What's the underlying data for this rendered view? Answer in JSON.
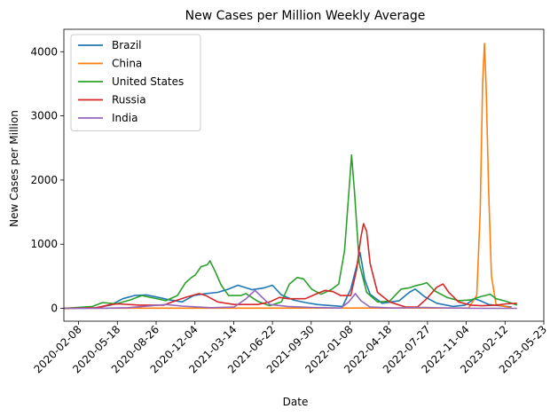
{
  "chart_data": {
    "type": "line",
    "title": "New Cases per Million Weekly Average",
    "xlabel": "Date",
    "ylabel": "New Cases per Million",
    "x_axis_type": "date",
    "xlim": [
      "2020-01-01",
      "2023-05-23"
    ],
    "ylim": [
      -200,
      4350
    ],
    "x_ticks": [
      "2020-02-08",
      "2020-05-18",
      "2020-08-26",
      "2020-12-04",
      "2021-03-14",
      "2021-06-22",
      "2021-09-30",
      "2022-01-08",
      "2022-04-18",
      "2022-07-27",
      "2022-11-04",
      "2023-02-12",
      "2023-05-23"
    ],
    "y_ticks": [
      0,
      1000,
      2000,
      3000,
      4000
    ],
    "grid": false,
    "legend_position": "upper-left",
    "series": [
      {
        "name": "Brazil",
        "color": "#1f77b4",
        "points": [
          [
            "2020-01-01",
            0
          ],
          [
            "2020-03-20",
            5
          ],
          [
            "2020-05-01",
            50
          ],
          [
            "2020-06-01",
            150
          ],
          [
            "2020-07-01",
            200
          ],
          [
            "2020-08-01",
            210
          ],
          [
            "2020-09-01",
            170
          ],
          [
            "2020-10-01",
            130
          ],
          [
            "2020-11-01",
            100
          ],
          [
            "2020-12-01",
            200
          ],
          [
            "2021-01-01",
            230
          ],
          [
            "2021-02-01",
            250
          ],
          [
            "2021-03-01",
            300
          ],
          [
            "2021-03-25",
            360
          ],
          [
            "2021-04-15",
            320
          ],
          [
            "2021-05-01",
            290
          ],
          [
            "2021-06-01",
            320
          ],
          [
            "2021-06-22",
            360
          ],
          [
            "2021-07-15",
            210
          ],
          [
            "2021-08-15",
            130
          ],
          [
            "2021-09-15",
            90
          ],
          [
            "2021-10-15",
            60
          ],
          [
            "2021-11-15",
            45
          ],
          [
            "2021-12-20",
            30
          ],
          [
            "2022-01-10",
            300
          ],
          [
            "2022-01-25",
            650
          ],
          [
            "2022-02-03",
            870
          ],
          [
            "2022-02-15",
            450
          ],
          [
            "2022-03-01",
            220
          ],
          [
            "2022-04-01",
            80
          ],
          [
            "2022-05-15",
            120
          ],
          [
            "2022-06-10",
            250
          ],
          [
            "2022-06-25",
            300
          ],
          [
            "2022-07-20",
            180
          ],
          [
            "2022-08-20",
            80
          ],
          [
            "2022-10-01",
            30
          ],
          [
            "2022-11-01",
            50
          ],
          [
            "2022-11-25",
            150
          ],
          [
            "2022-12-10",
            120
          ],
          [
            "2023-01-01",
            60
          ],
          [
            "2023-03-01",
            20
          ]
        ]
      },
      {
        "name": "China",
        "color": "#ff7f0e",
        "points": [
          [
            "2020-01-01",
            0
          ],
          [
            "2020-02-15",
            3
          ],
          [
            "2022-11-10",
            5
          ],
          [
            "2022-12-01",
            200
          ],
          [
            "2022-12-10",
            1500
          ],
          [
            "2022-12-16",
            3500
          ],
          [
            "2022-12-21",
            4130
          ],
          [
            "2022-12-25",
            3500
          ],
          [
            "2023-01-01",
            1800
          ],
          [
            "2023-01-08",
            500
          ],
          [
            "2023-01-20",
            60
          ],
          [
            "2023-03-01",
            5
          ]
        ]
      },
      {
        "name": "United States",
        "color": "#2ca02c",
        "points": [
          [
            "2020-01-01",
            0
          ],
          [
            "2020-03-15",
            30
          ],
          [
            "2020-04-10",
            90
          ],
          [
            "2020-05-15",
            70
          ],
          [
            "2020-06-20",
            130
          ],
          [
            "2020-07-20",
            200
          ],
          [
            "2020-08-20",
            160
          ],
          [
            "2020-09-20",
            120
          ],
          [
            "2020-10-20",
            200
          ],
          [
            "2020-11-10",
            400
          ],
          [
            "2020-11-25",
            480
          ],
          [
            "2020-12-05",
            520
          ],
          [
            "2020-12-20",
            650
          ],
          [
            "2021-01-05",
            680
          ],
          [
            "2021-01-12",
            740
          ],
          [
            "2021-01-25",
            580
          ],
          [
            "2021-02-10",
            360
          ],
          [
            "2021-03-01",
            200
          ],
          [
            "2021-04-01",
            200
          ],
          [
            "2021-04-15",
            230
          ],
          [
            "2021-05-15",
            110
          ],
          [
            "2021-06-15",
            40
          ],
          [
            "2021-07-15",
            100
          ],
          [
            "2021-08-05",
            380
          ],
          [
            "2021-08-25",
            480
          ],
          [
            "2021-09-10",
            460
          ],
          [
            "2021-10-01",
            300
          ],
          [
            "2021-10-25",
            220
          ],
          [
            "2021-11-20",
            290
          ],
          [
            "2021-12-10",
            380
          ],
          [
            "2021-12-25",
            900
          ],
          [
            "2022-01-05",
            1800
          ],
          [
            "2022-01-12",
            2390
          ],
          [
            "2022-01-20",
            1800
          ],
          [
            "2022-02-01",
            700
          ],
          [
            "2022-02-20",
            250
          ],
          [
            "2022-03-20",
            100
          ],
          [
            "2022-04-20",
            110
          ],
          [
            "2022-05-20",
            300
          ],
          [
            "2022-06-10",
            320
          ],
          [
            "2022-06-25",
            350
          ],
          [
            "2022-07-15",
            380
          ],
          [
            "2022-07-25",
            400
          ],
          [
            "2022-08-15",
            270
          ],
          [
            "2022-09-15",
            170
          ],
          [
            "2022-10-15",
            120
          ],
          [
            "2022-11-15",
            130
          ],
          [
            "2022-12-10",
            180
          ],
          [
            "2023-01-05",
            220
          ],
          [
            "2023-01-20",
            150
          ],
          [
            "2023-02-15",
            110
          ],
          [
            "2023-03-15",
            50
          ]
        ]
      },
      {
        "name": "Russia",
        "color": "#d62728",
        "points": [
          [
            "2020-01-01",
            0
          ],
          [
            "2020-03-25",
            10
          ],
          [
            "2020-05-01",
            60
          ],
          [
            "2020-05-20",
            70
          ],
          [
            "2020-07-15",
            50
          ],
          [
            "2020-09-15",
            50
          ],
          [
            "2020-10-15",
            120
          ],
          [
            "2020-11-15",
            180
          ],
          [
            "2020-12-15",
            230
          ],
          [
            "2021-01-01",
            200
          ],
          [
            "2021-02-01",
            100
          ],
          [
            "2021-03-15",
            60
          ],
          [
            "2021-05-15",
            60
          ],
          [
            "2021-06-15",
            100
          ],
          [
            "2021-07-10",
            170
          ],
          [
            "2021-08-01",
            150
          ],
          [
            "2021-09-15",
            150
          ],
          [
            "2021-10-15",
            230
          ],
          [
            "2021-11-05",
            280
          ],
          [
            "2021-11-25",
            260
          ],
          [
            "2021-12-15",
            200
          ],
          [
            "2022-01-10",
            200
          ],
          [
            "2022-01-25",
            600
          ],
          [
            "2022-02-05",
            1100
          ],
          [
            "2022-02-12",
            1320
          ],
          [
            "2022-02-20",
            1200
          ],
          [
            "2022-03-01",
            700
          ],
          [
            "2022-03-20",
            250
          ],
          [
            "2022-04-20",
            100
          ],
          [
            "2022-06-01",
            20
          ],
          [
            "2022-07-01",
            20
          ],
          [
            "2022-07-25",
            150
          ],
          [
            "2022-08-20",
            330
          ],
          [
            "2022-09-05",
            380
          ],
          [
            "2022-09-20",
            250
          ],
          [
            "2022-10-15",
            100
          ],
          [
            "2022-11-15",
            50
          ],
          [
            "2022-12-15",
            40
          ],
          [
            "2023-01-20",
            50
          ],
          [
            "2023-02-15",
            70
          ],
          [
            "2023-03-15",
            80
          ]
        ]
      },
      {
        "name": "India",
        "color": "#9467bd",
        "points": [
          [
            "2020-01-01",
            0
          ],
          [
            "2020-04-01",
            1
          ],
          [
            "2020-06-15",
            10
          ],
          [
            "2020-08-15",
            40
          ],
          [
            "2020-09-20",
            60
          ],
          [
            "2020-11-01",
            35
          ],
          [
            "2021-01-15",
            10
          ],
          [
            "2021-03-15",
            20
          ],
          [
            "2021-04-15",
            150
          ],
          [
            "2021-05-08",
            280
          ],
          [
            "2021-05-25",
            180
          ],
          [
            "2021-06-15",
            60
          ],
          [
            "2021-08-01",
            30
          ],
          [
            "2021-10-01",
            15
          ],
          [
            "2021-12-15",
            5
          ],
          [
            "2022-01-05",
            100
          ],
          [
            "2022-01-22",
            230
          ],
          [
            "2022-02-05",
            120
          ],
          [
            "2022-03-01",
            20
          ],
          [
            "2022-05-01",
            5
          ],
          [
            "2022-07-20",
            14
          ],
          [
            "2022-09-01",
            8
          ],
          [
            "2022-12-01",
            1
          ],
          [
            "2023-03-15",
            1
          ]
        ]
      }
    ]
  }
}
